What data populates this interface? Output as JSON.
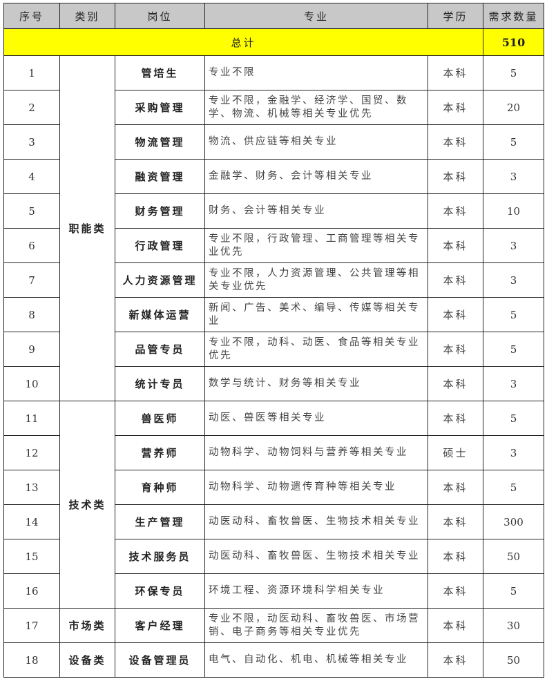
{
  "header": {
    "index": "序号",
    "category": "类别",
    "position": "岗位",
    "major": "专业",
    "education": "学历",
    "count": "需求数量"
  },
  "total": {
    "label": "总计",
    "value": "510"
  },
  "colors": {
    "header_bg": "#c8c8c8",
    "total_bg": "#ffff00"
  },
  "categories": [
    {
      "label": "职能类",
      "rows": 10
    },
    {
      "label": "技术类",
      "rows": 6
    },
    {
      "label": "市场类",
      "rows": 1
    },
    {
      "label": "设备类",
      "rows": 1
    }
  ],
  "rows": [
    {
      "index": "1",
      "position": "管培生",
      "major": "专业不限",
      "education": "本科",
      "count": "5"
    },
    {
      "index": "2",
      "position": "采购管理",
      "major": "专业不限，金融学、经济学、国贸、数学、物流、机械等相关专业优先",
      "education": "本科",
      "count": "20"
    },
    {
      "index": "3",
      "position": "物流管理",
      "major": "物流、供应链等相关专业",
      "education": "本科",
      "count": "5"
    },
    {
      "index": "4",
      "position": "融资管理",
      "major": "金融学、财务、会计等相关专业",
      "education": "本科",
      "count": "3"
    },
    {
      "index": "5",
      "position": "财务管理",
      "major": "财务、会计等相关专业",
      "education": "本科",
      "count": "10"
    },
    {
      "index": "6",
      "position": "行政管理",
      "major": "专业不限，行政管理、工商管理等相关专业优先",
      "education": "本科",
      "count": "3"
    },
    {
      "index": "7",
      "position": "人力资源管理",
      "major": "专业不限，人力资源管理、公共管理等相关专业优先",
      "education": "本科",
      "count": "3"
    },
    {
      "index": "8",
      "position": "新媒体运营",
      "major": "新闻、广告、美术、编导、传媒等相关专业",
      "education": "本科",
      "count": "5"
    },
    {
      "index": "9",
      "position": "品管专员",
      "major": "专业不限，动科、动医、食品等相关专业优先",
      "education": "本科",
      "count": "5"
    },
    {
      "index": "10",
      "position": "统计专员",
      "major": "数学与统计、财务等相关专业",
      "education": "本科",
      "count": "3"
    },
    {
      "index": "11",
      "position": "兽医师",
      "major": "动医、兽医等相关专业",
      "education": "本科",
      "count": "5"
    },
    {
      "index": "12",
      "position": "营养师",
      "major": "动物科学、动物饲料与营养等相关专业",
      "education": "硕士",
      "count": "3"
    },
    {
      "index": "13",
      "position": "育种师",
      "major": "动物科学、动物遗传育种等相关专业",
      "education": "本科",
      "count": "5"
    },
    {
      "index": "14",
      "position": "生产管理",
      "major": "动医动科、畜牧兽医、生物技术相关专业",
      "education": "本科",
      "count": "300"
    },
    {
      "index": "15",
      "position": "技术服务员",
      "major": "动医动科、畜牧兽医、生物技术相关专业",
      "education": "本科",
      "count": "50"
    },
    {
      "index": "16",
      "position": "环保专员",
      "major": "环境工程、资源环境科学相关专业",
      "education": "本科",
      "count": "5"
    },
    {
      "index": "17",
      "position": "客户经理",
      "major": "专业不限，动医动科、畜牧兽医、市场营销、电子商务等相关专业优先",
      "education": "本科",
      "count": "30"
    },
    {
      "index": "18",
      "position": "设备管理员",
      "major": "电气、自动化、机电、机械等相关专业",
      "education": "本科",
      "count": "50"
    }
  ]
}
